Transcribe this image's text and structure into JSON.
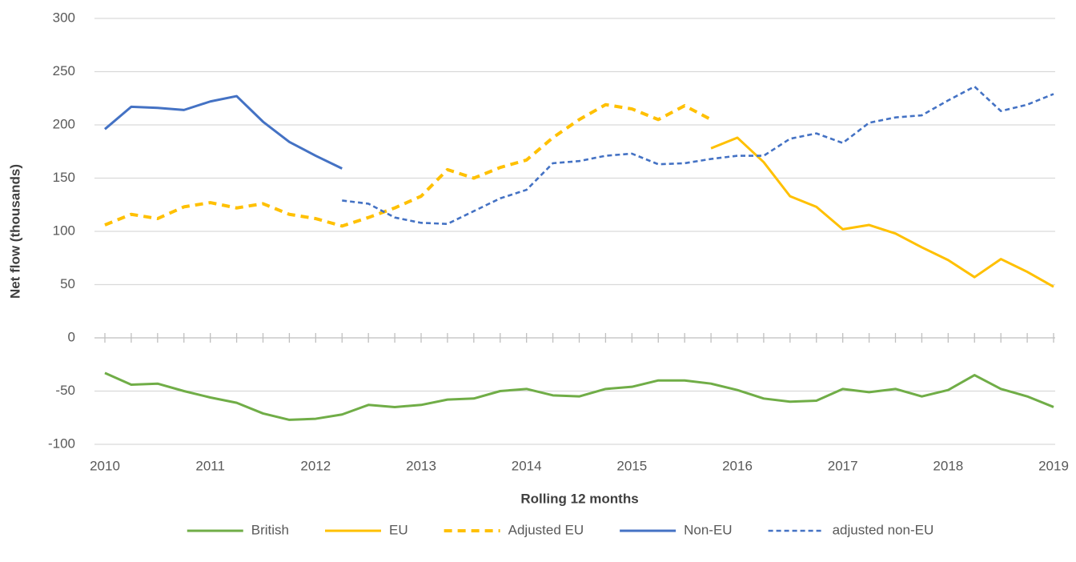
{
  "chart_data": {
    "type": "line",
    "y_label": "Net flow (thousands)",
    "x_label": "Rolling 12 months",
    "categories": [
      "2010",
      null,
      null,
      null,
      "2011",
      null,
      null,
      null,
      "2012",
      null,
      null,
      null,
      "2013",
      null,
      null,
      null,
      "2014",
      null,
      null,
      null,
      "2015",
      null,
      null,
      null,
      "2016",
      null,
      null,
      null,
      "2017",
      null,
      null,
      null,
      "2018",
      null,
      null,
      null,
      "2019"
    ],
    "ylim": [
      -100,
      300
    ],
    "yticks": [
      -100,
      -50,
      0,
      50,
      100,
      150,
      200,
      250,
      300
    ],
    "grid": true,
    "legend": "bottom",
    "series": [
      {
        "name": "British",
        "color": "#70ad47",
        "dash": "none",
        "values": [
          -33,
          -44,
          -43,
          -50,
          -56,
          -61,
          -71,
          -77,
          -76,
          -72,
          -63,
          -65,
          -63,
          -58,
          -57,
          -50,
          -48,
          -54,
          -55,
          -48,
          -46,
          -40,
          -40,
          -43,
          -49,
          -57,
          -60,
          -59,
          -48,
          -51,
          -48,
          -55,
          -49,
          -35,
          -48,
          -55,
          -65
        ]
      },
      {
        "name": "EU",
        "color": "#ffc000",
        "dash": "none",
        "values": [
          null,
          null,
          null,
          null,
          null,
          null,
          null,
          null,
          null,
          null,
          null,
          null,
          null,
          null,
          null,
          null,
          null,
          null,
          null,
          null,
          null,
          null,
          null,
          178,
          188,
          165,
          133,
          123,
          102,
          106,
          98,
          85,
          73,
          57,
          74,
          62,
          48
        ]
      },
      {
        "name": "Adjusted EU",
        "color": "#ffc000",
        "dash": "long",
        "values": [
          106,
          116,
          112,
          123,
          127,
          122,
          126,
          116,
          112,
          105,
          113,
          122,
          133,
          158,
          150,
          160,
          167,
          188,
          205,
          219,
          215,
          205,
          218,
          205,
          null,
          null,
          null,
          null,
          null,
          null,
          null,
          null,
          null,
          null,
          null,
          null,
          null
        ]
      },
      {
        "name": "Non-EU",
        "color": "#4472c4",
        "dash": "none",
        "values": [
          196,
          217,
          216,
          214,
          222,
          227,
          203,
          184,
          171,
          159,
          null,
          null,
          null,
          null,
          null,
          null,
          null,
          null,
          null,
          null,
          null,
          null,
          null,
          null,
          null,
          null,
          null,
          null,
          null,
          null,
          null,
          null,
          null,
          null,
          null,
          null,
          null
        ]
      },
      {
        "name": "adjusted non-EU",
        "color": "#4472c4",
        "dash": "short",
        "values": [
          null,
          null,
          null,
          null,
          null,
          null,
          null,
          null,
          null,
          129,
          126,
          113,
          108,
          107,
          119,
          131,
          139,
          164,
          166,
          171,
          173,
          163,
          164,
          168,
          171,
          171,
          187,
          192,
          183,
          202,
          207,
          209,
          223,
          236,
          213,
          219,
          229
        ]
      }
    ]
  }
}
